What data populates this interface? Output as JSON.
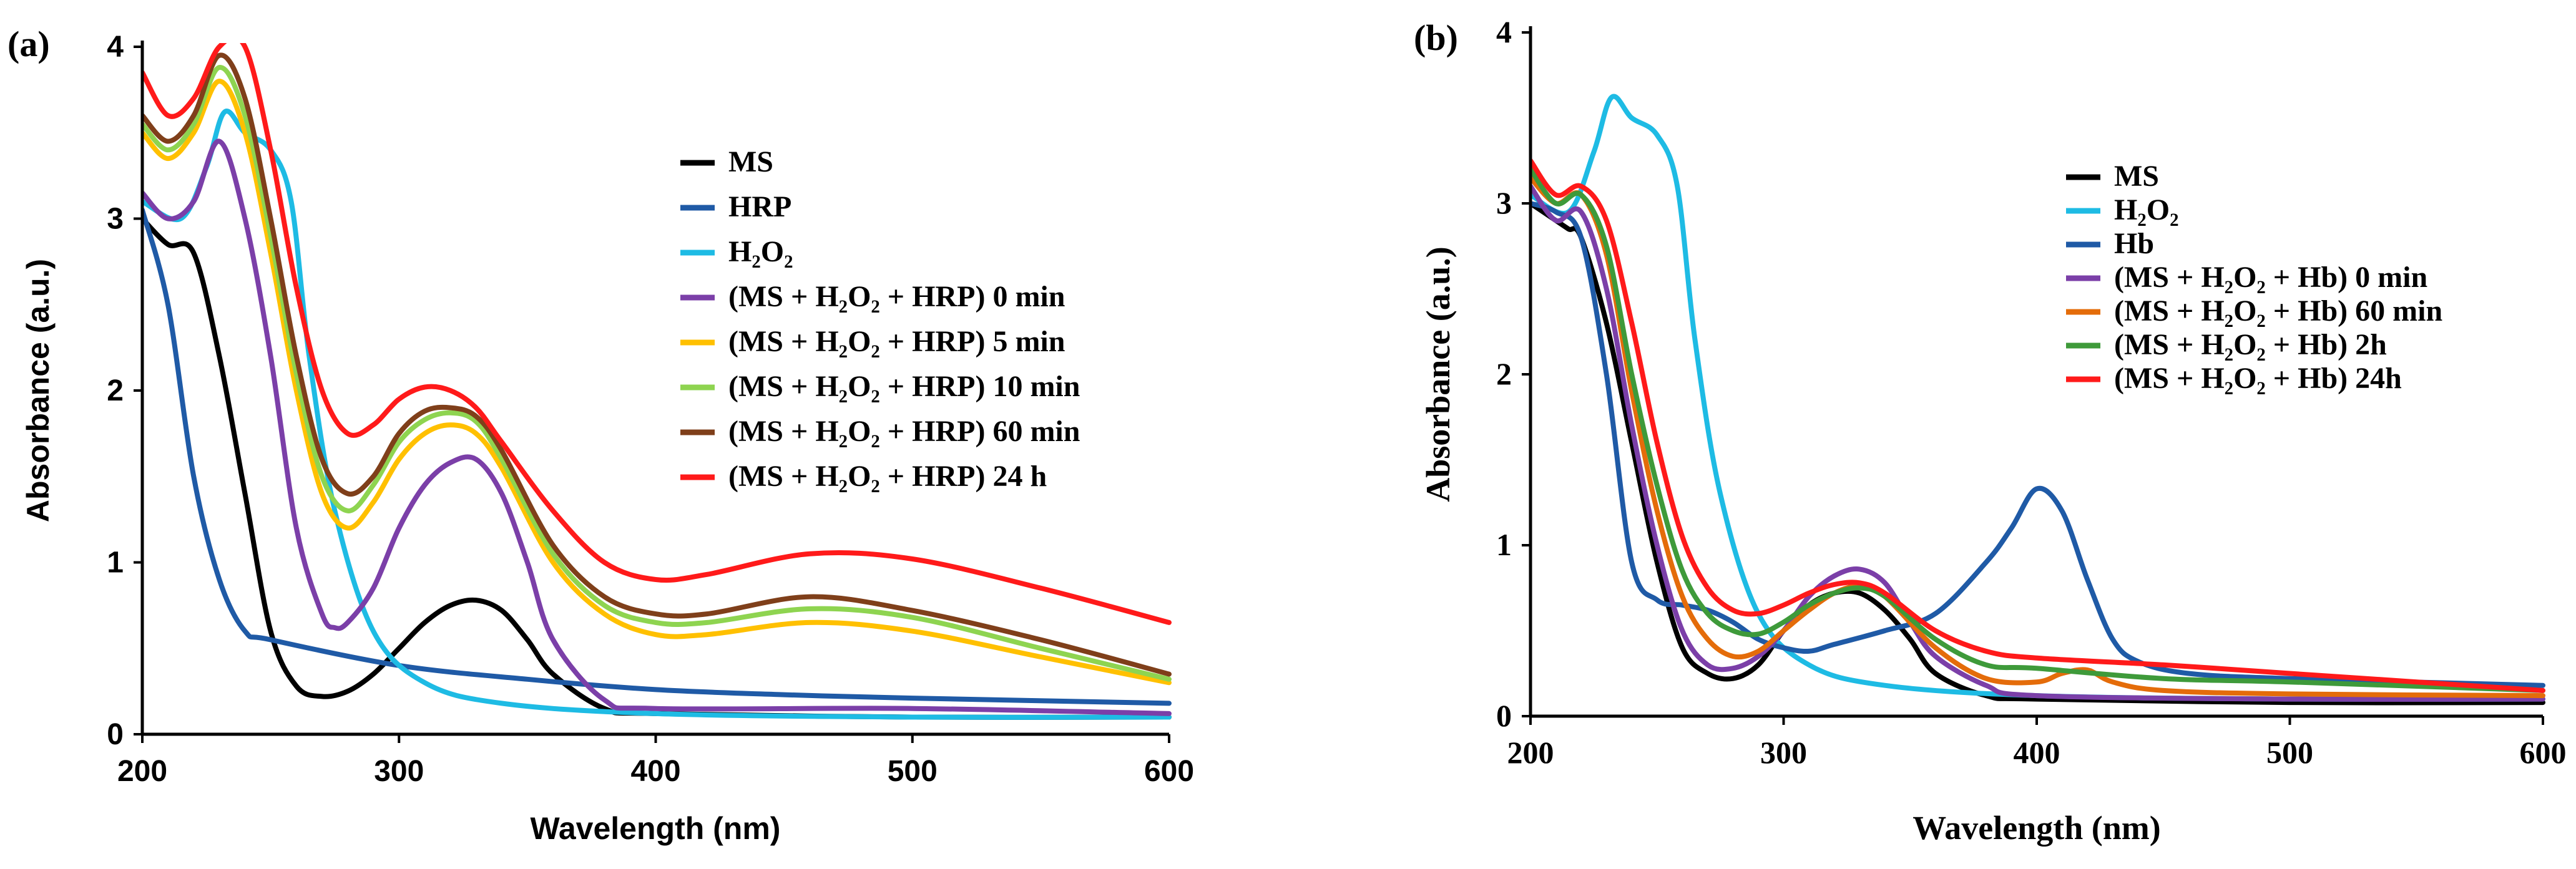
{
  "chart_data": [
    {
      "type": "line",
      "panel_label": "(a)",
      "xlabel": "Wavelength (nm)",
      "ylabel": "Absorbance (a.u.)",
      "xlim": [
        200,
        600
      ],
      "ylim": [
        0,
        4
      ],
      "xticks": [
        "200",
        "300",
        "400",
        "500",
        "600"
      ],
      "yticks": [
        "0",
        "1",
        "2",
        "3",
        "4"
      ],
      "legend_position": "right",
      "series": [
        {
          "name": "MS",
          "color": "#000000",
          "x": [
            200,
            210,
            220,
            230,
            240,
            250,
            260,
            270,
            280,
            290,
            300,
            310,
            320,
            330,
            340,
            350,
            360,
            380,
            400,
            500,
            600
          ],
          "y": [
            3.0,
            2.85,
            2.8,
            2.2,
            1.4,
            0.6,
            0.28,
            0.22,
            0.25,
            0.35,
            0.5,
            0.65,
            0.75,
            0.78,
            0.72,
            0.55,
            0.35,
            0.15,
            0.12,
            0.1,
            0.1
          ]
        },
        {
          "name": "HRP",
          "color": "#1f5aa6",
          "x": [
            200,
            210,
            220,
            230,
            240,
            250,
            300,
            350,
            400,
            450,
            500,
            600
          ],
          "y": [
            3.05,
            2.5,
            1.5,
            0.9,
            0.6,
            0.55,
            0.4,
            0.32,
            0.26,
            0.23,
            0.21,
            0.18
          ]
        },
        {
          "name": "H₂O₂",
          "color": "#1ebbe4",
          "x": [
            200,
            215,
            225,
            232,
            240,
            250,
            258,
            265,
            275,
            290,
            310,
            340,
            400,
            500,
            600
          ],
          "y": [
            3.1,
            3.0,
            3.3,
            3.62,
            3.5,
            3.4,
            3.1,
            2.2,
            1.3,
            0.6,
            0.3,
            0.18,
            0.12,
            0.1,
            0.1
          ]
        },
        {
          "name": "(MS + H₂O₂ + HRP)   0 min",
          "color": "#7b3fa8",
          "x": [
            200,
            210,
            220,
            230,
            240,
            250,
            260,
            270,
            275,
            280,
            290,
            300,
            310,
            320,
            330,
            340,
            350,
            360,
            380,
            400,
            500,
            600
          ],
          "y": [
            3.15,
            3.0,
            3.1,
            3.45,
            3.0,
            2.2,
            1.2,
            0.7,
            0.62,
            0.65,
            0.85,
            1.2,
            1.45,
            1.58,
            1.6,
            1.4,
            1.0,
            0.55,
            0.2,
            0.15,
            0.15,
            0.12
          ]
        },
        {
          "name": "(MS + H₂O₂ + HRP)   5 min",
          "color": "#ffc000",
          "x": [
            200,
            210,
            220,
            230,
            240,
            250,
            260,
            270,
            280,
            290,
            300,
            310,
            320,
            330,
            340,
            360,
            380,
            400,
            420,
            460,
            500,
            550,
            600
          ],
          "y": [
            3.5,
            3.35,
            3.5,
            3.8,
            3.5,
            2.8,
            2.0,
            1.4,
            1.2,
            1.35,
            1.6,
            1.75,
            1.8,
            1.75,
            1.55,
            1.0,
            0.7,
            0.58,
            0.58,
            0.65,
            0.6,
            0.45,
            0.3
          ]
        },
        {
          "name": "(MS + H₂O₂ + HRP) 10 min",
          "color": "#8ed450",
          "x": [
            200,
            210,
            220,
            230,
            240,
            250,
            260,
            270,
            280,
            290,
            300,
            310,
            320,
            330,
            340,
            360,
            380,
            400,
            420,
            460,
            500,
            550,
            600
          ],
          "y": [
            3.55,
            3.4,
            3.55,
            3.88,
            3.6,
            2.9,
            2.1,
            1.5,
            1.3,
            1.45,
            1.7,
            1.83,
            1.87,
            1.82,
            1.6,
            1.05,
            0.75,
            0.65,
            0.65,
            0.73,
            0.68,
            0.5,
            0.32
          ]
        },
        {
          "name": "(MS + H₂O₂ + HRP) 60 min",
          "color": "#7f3f1a",
          "x": [
            200,
            210,
            220,
            230,
            240,
            250,
            260,
            270,
            280,
            290,
            300,
            310,
            320,
            330,
            340,
            360,
            380,
            400,
            420,
            460,
            500,
            550,
            600
          ],
          "y": [
            3.6,
            3.45,
            3.6,
            3.95,
            3.7,
            3.0,
            2.2,
            1.6,
            1.4,
            1.5,
            1.75,
            1.88,
            1.9,
            1.85,
            1.65,
            1.1,
            0.8,
            0.7,
            0.7,
            0.8,
            0.72,
            0.55,
            0.35
          ]
        },
        {
          "name": "(MS + H₂O₂ + HRP) 24 h",
          "color": "#ff1a1a",
          "x": [
            200,
            210,
            220,
            230,
            240,
            250,
            260,
            270,
            280,
            290,
            300,
            310,
            320,
            330,
            340,
            360,
            380,
            400,
            420,
            460,
            500,
            550,
            600
          ],
          "y": [
            3.85,
            3.6,
            3.7,
            4.0,
            4.0,
            3.4,
            2.6,
            2.0,
            1.75,
            1.8,
            1.95,
            2.02,
            2.0,
            1.9,
            1.7,
            1.3,
            1.0,
            0.9,
            0.93,
            1.05,
            1.02,
            0.85,
            0.65
          ]
        }
      ]
    },
    {
      "type": "line",
      "panel_label": "(b)",
      "xlabel": "Wavelength (nm)",
      "ylabel": "Absorbance (a.u.)",
      "xlim": [
        200,
        600
      ],
      "ylim": [
        0,
        4
      ],
      "xticks": [
        "200",
        "300",
        "400",
        "500",
        "600"
      ],
      "yticks": [
        "0",
        "1",
        "2",
        "3",
        "4"
      ],
      "legend_position": "right",
      "series": [
        {
          "name": "MS",
          "color": "#000000",
          "x": [
            200,
            210,
            215,
            220,
            230,
            240,
            250,
            260,
            270,
            280,
            290,
            300,
            310,
            320,
            330,
            340,
            350,
            360,
            380,
            400,
            500,
            600
          ],
          "y": [
            3.0,
            2.9,
            2.85,
            2.8,
            2.3,
            1.6,
            0.9,
            0.4,
            0.25,
            0.22,
            0.3,
            0.5,
            0.65,
            0.72,
            0.72,
            0.62,
            0.45,
            0.25,
            0.12,
            0.1,
            0.08,
            0.08
          ]
        },
        {
          "name": "H₂O₂",
          "color": "#1ebbe4",
          "x": [
            200,
            215,
            225,
            232,
            240,
            250,
            258,
            265,
            275,
            290,
            310,
            340,
            400,
            500,
            600
          ],
          "y": [
            3.05,
            2.95,
            3.3,
            3.62,
            3.5,
            3.4,
            3.1,
            2.2,
            1.3,
            0.6,
            0.3,
            0.18,
            0.12,
            0.1,
            0.1
          ]
        },
        {
          "name": "Hb",
          "color": "#1f5aa6",
          "x": [
            200,
            210,
            220,
            230,
            240,
            250,
            260,
            270,
            280,
            290,
            300,
            310,
            320,
            340,
            360,
            380,
            390,
            400,
            410,
            420,
            430,
            440,
            460,
            500,
            600
          ],
          "y": [
            3.0,
            2.95,
            2.8,
            2.0,
            0.9,
            0.68,
            0.65,
            0.62,
            0.55,
            0.45,
            0.4,
            0.38,
            0.42,
            0.5,
            0.6,
            0.9,
            1.1,
            1.33,
            1.2,
            0.8,
            0.45,
            0.32,
            0.25,
            0.22,
            0.18
          ]
        },
        {
          "name": "(MS + H₂O₂ + Hb)   0 min",
          "color": "#7b3fa8",
          "x": [
            200,
            210,
            220,
            230,
            240,
            250,
            260,
            270,
            280,
            290,
            300,
            310,
            320,
            330,
            340,
            350,
            360,
            380,
            400,
            500,
            600
          ],
          "y": [
            3.1,
            2.9,
            2.95,
            2.5,
            1.7,
            1.0,
            0.5,
            0.3,
            0.28,
            0.35,
            0.5,
            0.7,
            0.82,
            0.86,
            0.78,
            0.55,
            0.35,
            0.18,
            0.12,
            0.1,
            0.1
          ]
        },
        {
          "name": "(MS + H₂O₂ + Hb) 60 min",
          "color": "#e46c0a",
          "x": [
            200,
            210,
            220,
            230,
            240,
            250,
            260,
            270,
            280,
            290,
            300,
            310,
            320,
            330,
            340,
            360,
            380,
            400,
            410,
            420,
            430,
            450,
            500,
            600
          ],
          "y": [
            3.15,
            3.0,
            3.05,
            2.7,
            1.9,
            1.2,
            0.7,
            0.45,
            0.35,
            0.38,
            0.5,
            0.62,
            0.72,
            0.76,
            0.7,
            0.4,
            0.22,
            0.2,
            0.25,
            0.27,
            0.2,
            0.15,
            0.13,
            0.12
          ]
        },
        {
          "name": "(MS + H₂O₂ + Hb)  2h",
          "color": "#3e9a3a",
          "x": [
            200,
            210,
            220,
            230,
            240,
            250,
            260,
            270,
            280,
            290,
            300,
            310,
            320,
            330,
            340,
            360,
            380,
            400,
            450,
            500,
            600
          ],
          "y": [
            3.2,
            3.0,
            3.05,
            2.75,
            2.0,
            1.35,
            0.85,
            0.6,
            0.5,
            0.48,
            0.55,
            0.65,
            0.72,
            0.75,
            0.7,
            0.45,
            0.3,
            0.28,
            0.22,
            0.2,
            0.15
          ]
        },
        {
          "name": "(MS + H₂O₂ + Hb) 24h",
          "color": "#ff1a1a",
          "x": [
            200,
            210,
            220,
            230,
            240,
            250,
            260,
            270,
            280,
            290,
            300,
            310,
            320,
            330,
            340,
            360,
            380,
            400,
            450,
            500,
            600
          ],
          "y": [
            3.25,
            3.05,
            3.1,
            2.9,
            2.3,
            1.6,
            1.05,
            0.75,
            0.62,
            0.6,
            0.65,
            0.72,
            0.77,
            0.78,
            0.72,
            0.5,
            0.38,
            0.34,
            0.3,
            0.25,
            0.15
          ]
        }
      ]
    }
  ]
}
